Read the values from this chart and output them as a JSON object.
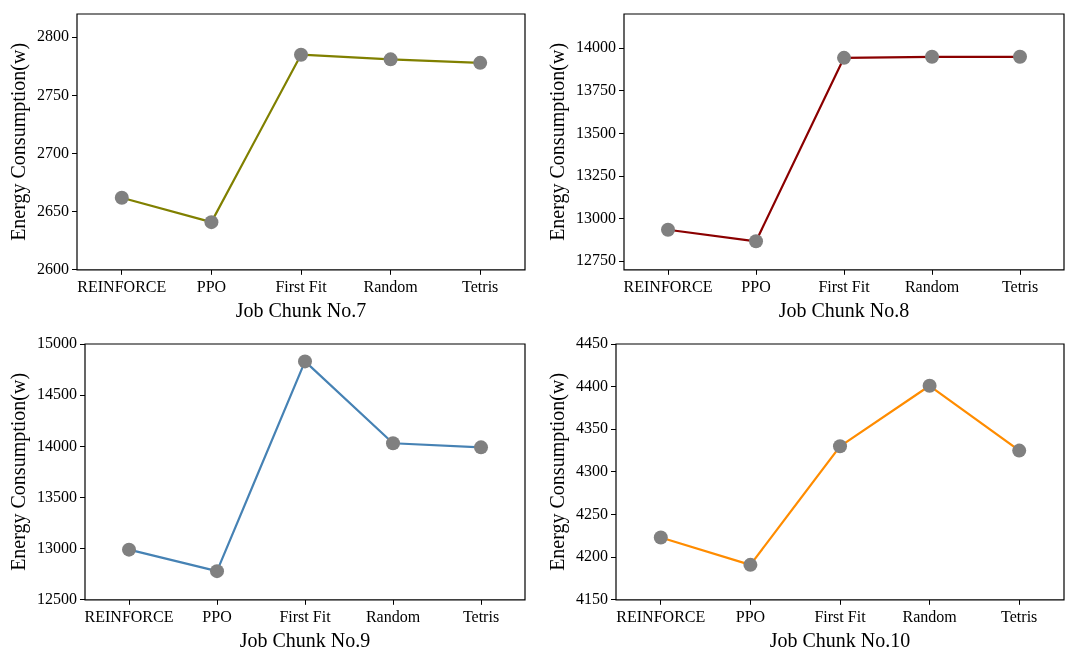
{
  "chart_data": [
    {
      "type": "line",
      "categories": [
        "REINFORCE",
        "PPO",
        "First Fit",
        "Random",
        "Tetris"
      ],
      "xlabel": "Job Chunk No.7",
      "ylabel": "Energy Consumption(w)",
      "marker": "circle",
      "ylim": [
        2600,
        2820
      ],
      "yticks": [
        2600,
        2650,
        2700,
        2750,
        2800
      ],
      "series": [
        {
          "color": "#808000",
          "values": [
            2662,
            2641,
            2785,
            2781,
            2778
          ]
        }
      ]
    },
    {
      "type": "line",
      "categories": [
        "REINFORCE",
        "PPO",
        "First Fit",
        "Random",
        "Tetris"
      ],
      "xlabel": "Job Chunk No.8",
      "ylabel": "Energy Consumption(w)",
      "marker": "circle",
      "ylim": [
        12700,
        14200
      ],
      "yticks": [
        12750,
        13000,
        13250,
        13500,
        13750,
        14000
      ],
      "series": [
        {
          "color": "#8b0000",
          "values": [
            12935,
            12867,
            13943,
            13949,
            13949
          ]
        }
      ]
    },
    {
      "type": "line",
      "categories": [
        "REINFORCE",
        "PPO",
        "First Fit",
        "Random",
        "Tetris"
      ],
      "xlabel": "Job Chunk No.9",
      "ylabel": "Energy Consumption(w)",
      "marker": "circle",
      "ylim": [
        12500,
        15000
      ],
      "yticks": [
        12500,
        13000,
        13500,
        14000,
        14500,
        15000
      ],
      "series": [
        {
          "color": "#4682b4",
          "values": [
            12990,
            12780,
            14830,
            14030,
            13990
          ]
        }
      ]
    },
    {
      "type": "line",
      "categories": [
        "REINFORCE",
        "PPO",
        "First Fit",
        "Random",
        "Tetris"
      ],
      "xlabel": "Job Chunk No.10",
      "ylabel": "Energy Consumption(w)",
      "marker": "circle",
      "ylim": [
        4150,
        4450
      ],
      "yticks": [
        4150,
        4200,
        4250,
        4300,
        4350,
        4400,
        4450
      ],
      "series": [
        {
          "color": "#ff8c00",
          "values": [
            4223,
            4191,
            4330,
            4401,
            4325
          ]
        }
      ]
    }
  ]
}
